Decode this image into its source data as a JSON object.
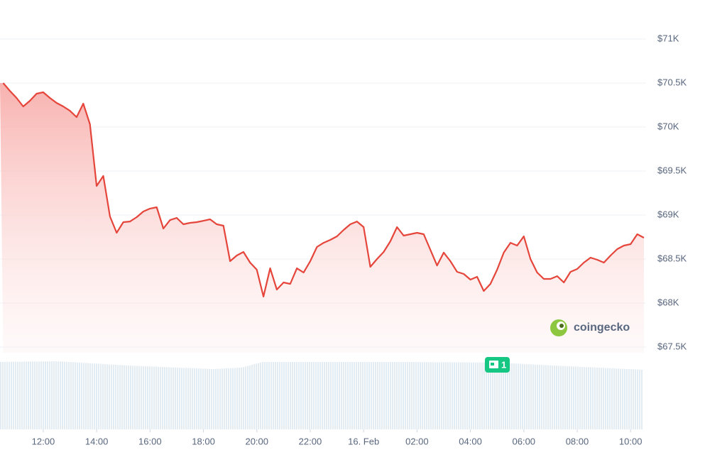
{
  "chart_data": {
    "type": "line",
    "x": [
      10.5,
      10.75,
      11,
      11.25,
      11.5,
      11.75,
      12,
      12.25,
      12.5,
      12.75,
      13,
      13.25,
      13.5,
      13.75,
      14,
      14.25,
      14.5,
      14.75,
      15,
      15.25,
      15.5,
      15.75,
      16,
      16.25,
      16.5,
      16.75,
      17,
      17.25,
      17.5,
      17.75,
      18,
      18.25,
      18.5,
      18.75,
      19,
      19.25,
      19.5,
      19.75,
      20,
      20.25,
      20.5,
      20.75,
      21,
      21.25,
      21.5,
      21.75,
      22,
      22.25,
      22.5,
      22.75,
      23,
      23.25,
      23.5,
      23.75,
      24,
      24.25,
      24.5,
      24.75,
      25,
      25.25,
      25.5,
      25.75,
      26,
      26.25,
      26.5,
      26.75,
      27,
      27.25,
      27.5,
      27.75,
      28,
      28.25,
      28.5,
      28.75,
      29,
      29.25,
      29.5,
      29.75,
      30,
      30.25,
      30.5,
      30.75,
      31,
      31.25,
      31.5,
      31.75,
      32,
      32.25,
      32.5,
      32.75,
      33,
      33.25,
      33.5,
      33.75,
      34,
      34.25,
      34.5
    ],
    "values": [
      70500,
      70411,
      70331,
      70234,
      70298,
      70379,
      70395,
      70331,
      70274,
      70234,
      70185,
      70113,
      70266,
      70032,
      69331,
      69444,
      68984,
      68798,
      68919,
      68927,
      68976,
      69040,
      69073,
      69089,
      68847,
      68943,
      68968,
      68895,
      68911,
      68919,
      68935,
      68952,
      68895,
      68879,
      68476,
      68540,
      68581,
      68460,
      68379,
      68073,
      68395,
      68153,
      68234,
      68218,
      68395,
      68347,
      68476,
      68637,
      68685,
      68718,
      68758,
      68831,
      68895,
      68927,
      68863,
      68411,
      68500,
      68581,
      68702,
      68863,
      68766,
      68782,
      68798,
      68782,
      68605,
      68427,
      68573,
      68476,
      68355,
      68331,
      68266,
      68298,
      68137,
      68218,
      68379,
      68573,
      68685,
      68653,
      68758,
      68500,
      68347,
      68274,
      68274,
      68306,
      68234,
      68355,
      68387,
      68460,
      68516,
      68492,
      68460,
      68540,
      68613,
      68653,
      68669,
      68782,
      68742
    ],
    "color": "#e5453a",
    "xlim": [
      10.38,
      34.5
    ],
    "xticks": [
      {
        "value": 12,
        "label": "12:00"
      },
      {
        "value": 14,
        "label": "14:00"
      },
      {
        "value": 16,
        "label": "16:00"
      },
      {
        "value": 18,
        "label": "18:00"
      },
      {
        "value": 20,
        "label": "20:00"
      },
      {
        "value": 22,
        "label": "22:00"
      },
      {
        "value": 24,
        "label": "16. Feb"
      },
      {
        "value": 26,
        "label": "02:00"
      },
      {
        "value": 28,
        "label": "04:00"
      },
      {
        "value": 30,
        "label": "06:00"
      },
      {
        "value": 32,
        "label": "08:00"
      },
      {
        "value": 34,
        "label": "10:00"
      }
    ],
    "ylim": [
      67500,
      71000
    ],
    "yticks": [
      {
        "value": 67500,
        "label": "$67.5K"
      },
      {
        "value": 68000,
        "label": "$68K"
      },
      {
        "value": 68500,
        "label": "$68.5K"
      },
      {
        "value": 69000,
        "label": "$69K"
      },
      {
        "value": 69500,
        "label": "$69.5K"
      },
      {
        "value": 70000,
        "label": "$70K"
      },
      {
        "value": 70500,
        "label": "$70.5K"
      },
      {
        "value": 71000,
        "label": "$71K"
      }
    ],
    "grid": true,
    "watermark": "coingecko",
    "news_count": 1
  }
}
